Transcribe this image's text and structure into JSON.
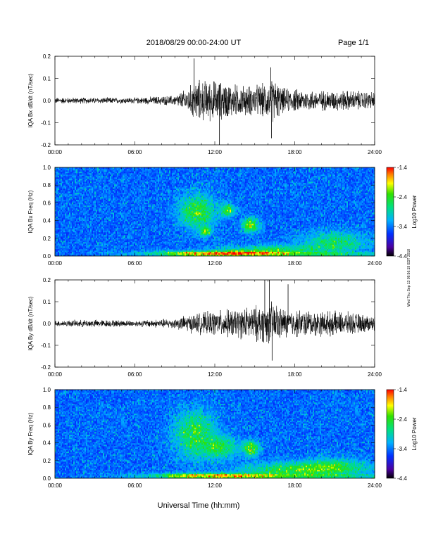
{
  "header": {
    "title": "2018/08/29  00:00-24:00 UT",
    "page": "Page 1/1"
  },
  "footer": {
    "xlabel": "Universal Time (hh:mm)",
    "side_note": "Wed Thu Sep 13 09:56:19 EDT 2018"
  },
  "chart_data": [
    {
      "type": "line",
      "ylabel": "IQA Bx dB/dt (nT/sec)",
      "xlim": [
        0,
        24
      ],
      "ylim": [
        -0.2,
        0.2
      ],
      "xticks": [
        "00:00",
        "06:00",
        "12:00",
        "18:00",
        "24:00"
      ],
      "yticks": [
        "-0.2",
        "-0.1",
        "0.0",
        "0.1",
        "0.2"
      ],
      "envelope": {
        "x": [
          0,
          6,
          9,
          10,
          10.5,
          12,
          14,
          15,
          16,
          16.5,
          17,
          18,
          20,
          22,
          24
        ],
        "amplitude": [
          0.012,
          0.012,
          0.02,
          0.05,
          0.08,
          0.08,
          0.06,
          0.06,
          0.07,
          0.09,
          0.05,
          0.045,
          0.04,
          0.04,
          0.035
        ]
      },
      "spikes": [
        {
          "x": 10.45,
          "y": 0.19
        },
        {
          "x": 12.35,
          "y": -0.2
        },
        {
          "x": 16.2,
          "y": 0.15
        },
        {
          "x": 16.25,
          "y": -0.17
        }
      ]
    },
    {
      "type": "heatmap",
      "ylabel": "IQA Bx Freq (Hz)",
      "xlim": [
        0,
        24
      ],
      "ylim": [
        0,
        1.0
      ],
      "xticks": [
        "00:00",
        "06:00",
        "12:00",
        "18:00",
        "24:00"
      ],
      "yticks": [
        "0.0",
        "0.2",
        "0.4",
        "0.6",
        "0.8",
        "1.0"
      ],
      "colorbar": {
        "label": "Log10 Power",
        "ticks": [
          "-1.4",
          "-2.4",
          "-3.4",
          "-4.4"
        ],
        "range": [
          -4.4,
          -1.4
        ]
      },
      "blobs": [
        {
          "t": 10.7,
          "f": 0.5,
          "rt": 1.3,
          "rf": 0.18,
          "amp": 1.1
        },
        {
          "t": 11.3,
          "f": 0.28,
          "rt": 0.4,
          "rf": 0.05,
          "amp": 1.2
        },
        {
          "t": 13.0,
          "f": 0.52,
          "rt": 0.5,
          "rf": 0.07,
          "amp": 1.1
        },
        {
          "t": 14.7,
          "f": 0.35,
          "rt": 0.6,
          "rf": 0.08,
          "amp": 1.3
        },
        {
          "t": 16.0,
          "f": 0.06,
          "rt": 3.5,
          "rf": 0.06,
          "amp": 0.9
        },
        {
          "t": 21.0,
          "f": 0.15,
          "rt": 2.5,
          "rf": 0.12,
          "amp": 0.8
        },
        {
          "t": 12.0,
          "f": 0.03,
          "rt": 5.0,
          "rf": 0.03,
          "amp": 1.4
        }
      ]
    },
    {
      "type": "line",
      "ylabel": "IQA By dB/dt (nT/sec)",
      "xlim": [
        0,
        24
      ],
      "ylim": [
        -0.2,
        0.2
      ],
      "xticks": [
        "00:00",
        "06:00",
        "12:00",
        "18:00",
        "24:00"
      ],
      "yticks": [
        "-0.2",
        "-0.1",
        "0.0",
        "0.1",
        "0.2"
      ],
      "envelope": {
        "x": [
          0,
          3,
          6,
          9,
          10,
          12,
          14,
          15,
          16,
          16.5,
          17,
          18,
          20,
          22,
          24
        ],
        "amplitude": [
          0.012,
          0.015,
          0.012,
          0.02,
          0.035,
          0.05,
          0.06,
          0.07,
          0.08,
          0.09,
          0.06,
          0.055,
          0.05,
          0.045,
          0.03
        ]
      },
      "spikes": [
        {
          "x": 15.75,
          "y": 0.2
        },
        {
          "x": 16.1,
          "y": 0.2
        },
        {
          "x": 16.3,
          "y": -0.17
        },
        {
          "x": 17.5,
          "y": 0.18
        }
      ]
    },
    {
      "type": "heatmap",
      "ylabel": "IQA By Freq (Hz)",
      "xlim": [
        0,
        24
      ],
      "ylim": [
        0,
        1.0
      ],
      "xticks": [
        "00:00",
        "06:00",
        "12:00",
        "18:00",
        "24:00"
      ],
      "yticks": [
        "0.0",
        "0.2",
        "0.4",
        "0.6",
        "0.8",
        "1.0"
      ],
      "colorbar": {
        "label": "Log10 Power",
        "ticks": [
          "-1.4",
          "-2.4",
          "-3.4",
          "-4.4"
        ],
        "range": [
          -4.4,
          -1.4
        ]
      },
      "blobs": [
        {
          "t": 10.5,
          "f": 0.5,
          "rt": 1.5,
          "rf": 0.25,
          "amp": 1.0
        },
        {
          "t": 12.5,
          "f": 0.35,
          "rt": 1.2,
          "rf": 0.12,
          "amp": 0.9
        },
        {
          "t": 14.7,
          "f": 0.34,
          "rt": 0.6,
          "rf": 0.08,
          "amp": 1.3
        },
        {
          "t": 17.5,
          "f": 0.1,
          "rt": 3.5,
          "rf": 0.08,
          "amp": 0.9
        },
        {
          "t": 21.0,
          "f": 0.12,
          "rt": 2.5,
          "rf": 0.1,
          "amp": 0.9
        },
        {
          "t": 12.0,
          "f": 0.03,
          "rt": 5.0,
          "rf": 0.03,
          "amp": 1.4
        }
      ]
    }
  ]
}
